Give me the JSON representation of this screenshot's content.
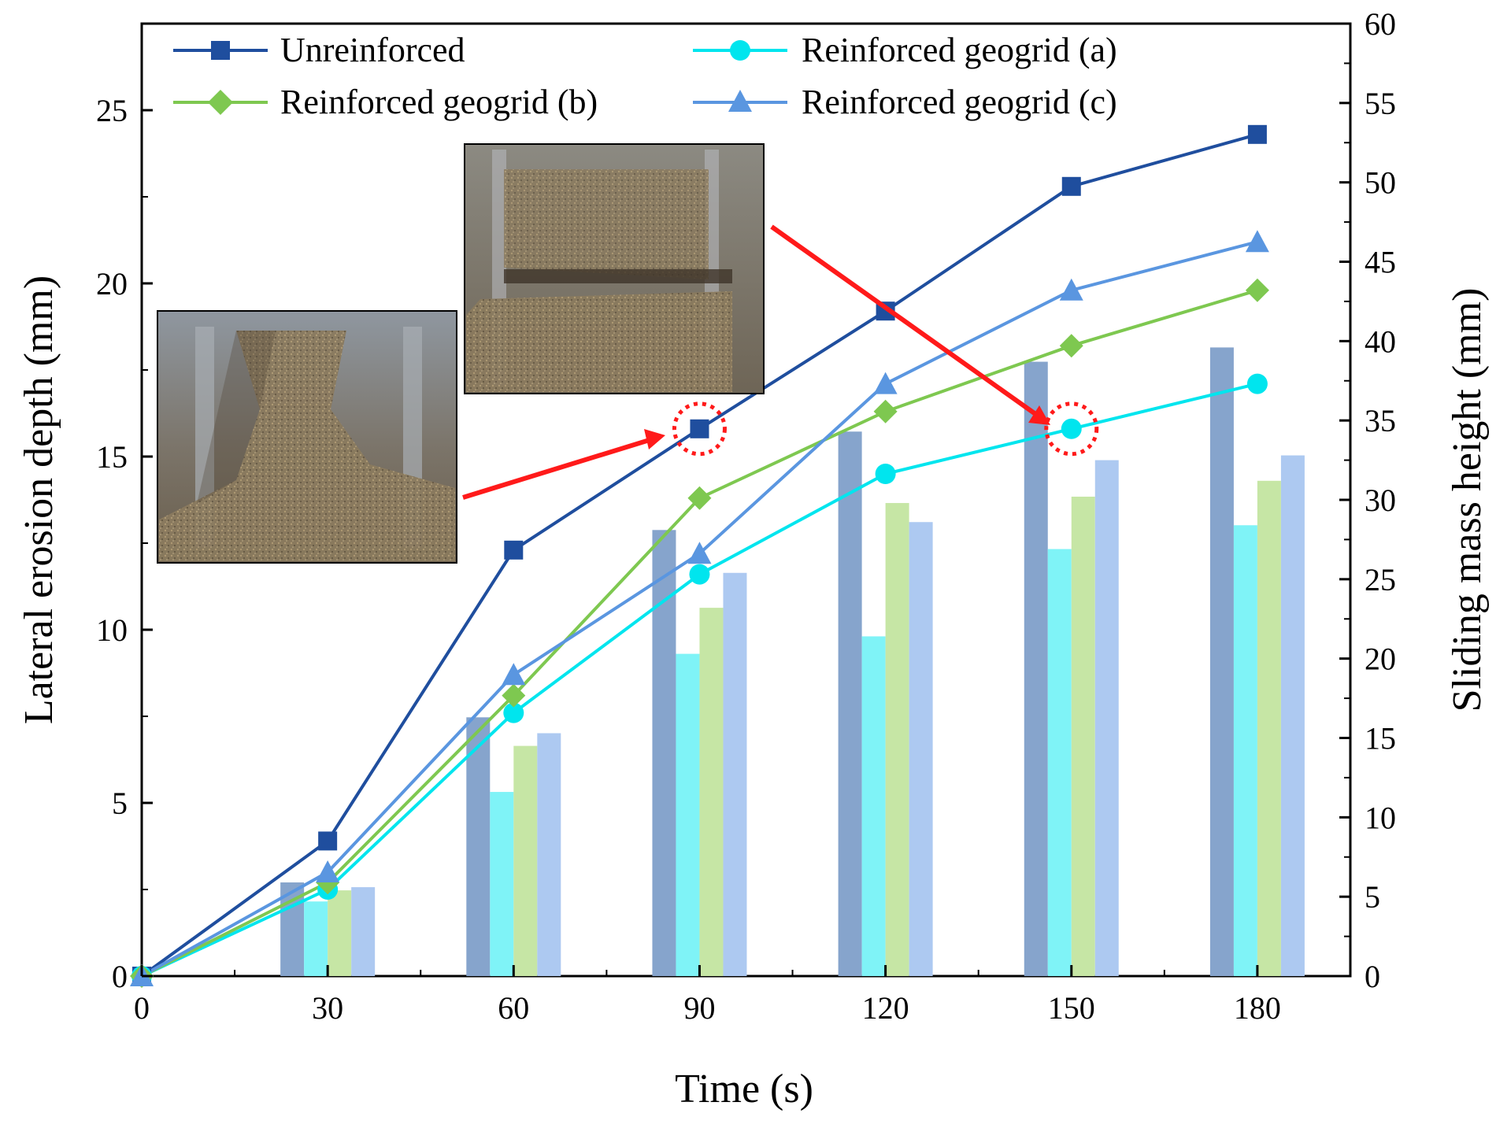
{
  "chart_data": {
    "type": "line+bar",
    "xlabel": "Time (s)",
    "ylabel_left": "Lateral erosion depth (mm)",
    "ylabel_right": "Sliding mass height (mm)",
    "xlim": [
      0,
      195
    ],
    "ylim_left": [
      0,
      27.5
    ],
    "ylim_right": [
      0,
      60
    ],
    "x_ticks": [
      0,
      30,
      60,
      90,
      120,
      150,
      180
    ],
    "y_left_ticks": [
      0,
      5,
      10,
      15,
      20,
      25
    ],
    "y_right_ticks": [
      0,
      5,
      10,
      15,
      20,
      25,
      30,
      35,
      40,
      45,
      50,
      55,
      60
    ],
    "line_x": [
      0,
      30,
      60,
      90,
      120,
      150,
      180
    ],
    "line_series": [
      {
        "name": "Unreinforced",
        "color": "#1f4e9e",
        "marker": "square",
        "values": [
          0,
          3.9,
          12.3,
          15.8,
          19.2,
          22.8,
          24.3
        ]
      },
      {
        "name": "Reinforced geogrid (a)",
        "color": "#00e5ee",
        "marker": "circle",
        "values": [
          0,
          2.5,
          7.6,
          11.6,
          14.5,
          15.8,
          17.1
        ]
      },
      {
        "name": "Reinforced geogrid (b)",
        "color": "#7ec850",
        "marker": "diamond",
        "values": [
          0,
          2.7,
          8.1,
          13.8,
          16.3,
          18.2,
          19.8
        ]
      },
      {
        "name": "Reinforced geogrid (c)",
        "color": "#5a96e0",
        "marker": "triangle",
        "values": [
          0,
          3.0,
          8.7,
          12.2,
          17.1,
          19.8,
          21.2
        ]
      }
    ],
    "bar_categories": [
      30,
      60,
      90,
      120,
      150,
      180
    ],
    "bar_series": [
      {
        "name": "Unreinforced",
        "color": "#86a4cc",
        "values": [
          5.9,
          16.3,
          28.1,
          34.3,
          38.7,
          39.6
        ]
      },
      {
        "name": "Reinforced geogrid (a)",
        "color": "#7ff3f7",
        "values": [
          4.7,
          11.6,
          20.3,
          21.4,
          26.9,
          28.4
        ]
      },
      {
        "name": "Reinforced geogrid (b)",
        "color": "#c6e6a5",
        "values": [
          5.4,
          14.5,
          23.2,
          29.8,
          30.2,
          31.2
        ]
      },
      {
        "name": "Reinforced geogrid (c)",
        "color": "#adc9f1",
        "values": [
          5.6,
          15.3,
          25.4,
          28.6,
          32.5,
          32.8
        ]
      }
    ],
    "legend_position": "top",
    "annotations": [
      {
        "type": "photo-inset",
        "description": "collapsed soil mass (unreinforced)",
        "points_to": {
          "series": "Unreinforced",
          "x": 90,
          "y": 15.8
        }
      },
      {
        "type": "photo-inset",
        "description": "soil with geogrid layer",
        "points_to": {
          "series": "Reinforced geogrid (a)",
          "x": 150,
          "y": 15.8
        }
      }
    ]
  }
}
